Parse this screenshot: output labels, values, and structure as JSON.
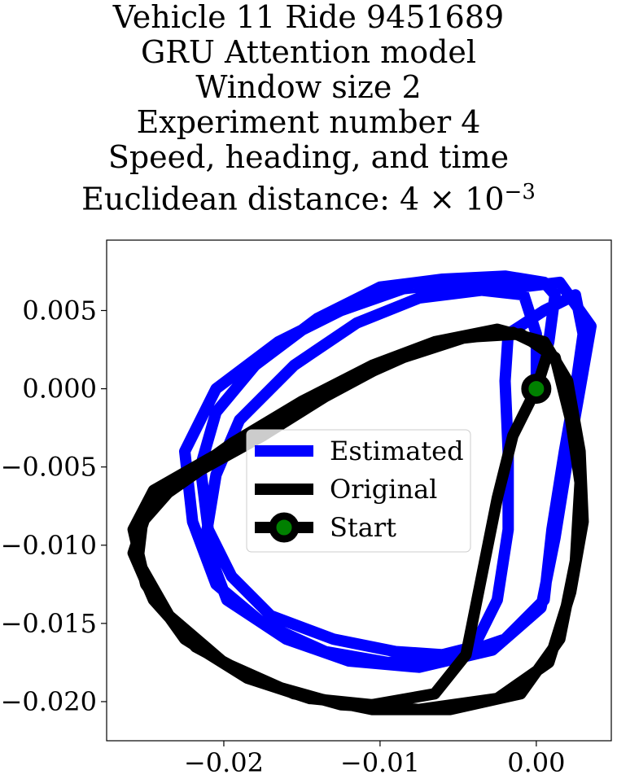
{
  "title_lines": [
    "Vehicle 11 Ride 9451689",
    "GRU Attention model",
    "Window size 2",
    "Experiment number 4",
    "Speed, heading, and time"
  ],
  "title_metric": {
    "prefix": "Euclidean distance: ",
    "mantissa": "4",
    "times": "×",
    "base": "10",
    "exponent": "−3"
  },
  "chart_data": {
    "type": "line",
    "title": "Vehicle 11 Ride 9451689 / GRU Attention model / Window size 2 / Experiment number 4 / Speed, heading, and time / Euclidean distance: 4×10^-3",
    "xlabel": "",
    "ylabel": "",
    "xlim": [
      -0.0275,
      0.0048
    ],
    "ylim": [
      -0.0225,
      0.0095
    ],
    "xticks": [
      -0.02,
      -0.01,
      0.0
    ],
    "xtick_labels": [
      "−0.02",
      "−0.01",
      "0.00"
    ],
    "yticks": [
      0.005,
      0.0,
      -0.005,
      -0.01,
      -0.015,
      -0.02
    ],
    "ytick_labels": [
      "0.005",
      "0.000",
      "−0.005",
      "−0.010",
      "−0.015",
      "−0.020"
    ],
    "grid": false,
    "legend_position": "center",
    "series": [
      {
        "name": "Estimated",
        "color": "#0000ff",
        "points": [
          [
            0.0,
            0.0
          ],
          [
            0.0008,
            0.003
          ],
          [
            0.0012,
            0.006
          ],
          [
            0.0005,
            0.0068
          ],
          [
            -0.002,
            0.0072
          ],
          [
            -0.006,
            0.007
          ],
          [
            -0.01,
            0.0065
          ],
          [
            -0.014,
            0.0045
          ],
          [
            -0.018,
            0.0015
          ],
          [
            -0.0205,
            -0.0015
          ],
          [
            -0.0215,
            -0.005
          ],
          [
            -0.021,
            -0.009
          ],
          [
            -0.0195,
            -0.012
          ],
          [
            -0.017,
            -0.0145
          ],
          [
            -0.013,
            -0.016
          ],
          [
            -0.009,
            -0.0168
          ],
          [
            -0.006,
            -0.017
          ],
          [
            -0.004,
            -0.0165
          ],
          [
            -0.0025,
            -0.0135
          ],
          [
            -0.0018,
            -0.009
          ],
          [
            -0.0018,
            -0.004
          ],
          [
            -0.002,
            0.0005
          ],
          [
            -0.0018,
            0.0035
          ],
          [
            0.0005,
            0.005
          ],
          [
            0.0025,
            0.006
          ],
          [
            0.003,
            0.0035
          ],
          [
            0.0025,
            0.0
          ],
          [
            0.0018,
            -0.004
          ],
          [
            0.001,
            -0.009
          ],
          [
            0.0005,
            -0.0135
          ],
          [
            -0.002,
            -0.016
          ],
          [
            -0.0055,
            -0.0172
          ],
          [
            -0.0095,
            -0.0175
          ],
          [
            -0.0135,
            -0.0168
          ],
          [
            -0.0175,
            -0.015
          ],
          [
            -0.0205,
            -0.0125
          ],
          [
            -0.022,
            -0.0085
          ],
          [
            -0.0225,
            -0.004
          ],
          [
            -0.0205,
            0.0
          ],
          [
            -0.0165,
            0.003
          ],
          [
            -0.0125,
            0.005
          ],
          [
            -0.0085,
            0.0064
          ],
          [
            -0.0045,
            0.0068
          ],
          [
            -0.001,
            0.0065
          ],
          [
            0.0015,
            0.0068
          ],
          [
            0.0035,
            0.004
          ],
          [
            0.0028,
            0.0
          ],
          [
            0.002,
            -0.0045
          ],
          [
            0.0012,
            -0.0095
          ],
          [
            0.0003,
            -0.014
          ],
          [
            -0.0028,
            -0.0167
          ],
          [
            -0.0075,
            -0.0178
          ],
          [
            -0.012,
            -0.0174
          ],
          [
            -0.016,
            -0.016
          ],
          [
            -0.0198,
            -0.0135
          ],
          [
            -0.0212,
            -0.0098
          ],
          [
            -0.0205,
            -0.0055
          ],
          [
            -0.019,
            -0.002
          ],
          [
            -0.0155,
            0.0015
          ],
          [
            -0.0115,
            0.0042
          ],
          [
            -0.0075,
            0.0058
          ],
          [
            -0.0035,
            0.0063
          ],
          [
            -0.0008,
            0.006
          ],
          [
            0.0,
            0.0035
          ],
          [
            0.0,
            0.0
          ]
        ]
      },
      {
        "name": "Original",
        "color": "#000000",
        "points": [
          [
            0.0,
            0.0
          ],
          [
            -0.0015,
            -0.003
          ],
          [
            -0.0025,
            -0.007
          ],
          [
            -0.0035,
            -0.012
          ],
          [
            -0.0045,
            -0.017
          ],
          [
            -0.0065,
            -0.0195
          ],
          [
            -0.0105,
            -0.0202
          ],
          [
            -0.0145,
            -0.0198
          ],
          [
            -0.0185,
            -0.0185
          ],
          [
            -0.0225,
            -0.016
          ],
          [
            -0.025,
            -0.0125
          ],
          [
            -0.0258,
            -0.009
          ],
          [
            -0.0245,
            -0.0065
          ],
          [
            -0.021,
            -0.0045
          ],
          [
            -0.0175,
            -0.0025
          ],
          [
            -0.013,
            0.0
          ],
          [
            -0.0085,
            0.002
          ],
          [
            -0.0045,
            0.0033
          ],
          [
            -0.001,
            0.0035
          ],
          [
            0.0012,
            0.002
          ],
          [
            0.0022,
            -0.002
          ],
          [
            0.0028,
            -0.006
          ],
          [
            0.0025,
            -0.011
          ],
          [
            0.0015,
            -0.016
          ],
          [
            -0.001,
            -0.0195
          ],
          [
            -0.0055,
            -0.0205
          ],
          [
            -0.0105,
            -0.0205
          ],
          [
            -0.0155,
            -0.0195
          ],
          [
            -0.02,
            -0.0175
          ],
          [
            -0.0235,
            -0.0145
          ],
          [
            -0.0255,
            -0.011
          ],
          [
            -0.0252,
            -0.0085
          ],
          [
            -0.023,
            -0.006
          ],
          [
            -0.0195,
            -0.0035
          ],
          [
            -0.015,
            -0.0008
          ],
          [
            -0.0105,
            0.0015
          ],
          [
            -0.0065,
            0.003
          ],
          [
            -0.0025,
            0.0038
          ],
          [
            0.0005,
            0.003
          ],
          [
            0.002,
            0.0005
          ],
          [
            0.0028,
            -0.004
          ],
          [
            0.003,
            -0.0085
          ],
          [
            0.0022,
            -0.013
          ],
          [
            0.0008,
            -0.0175
          ],
          [
            -0.0025,
            -0.0198
          ],
          [
            -0.0075,
            -0.0205
          ],
          [
            -0.0125,
            -0.0202
          ],
          [
            -0.0175,
            -0.0188
          ],
          [
            -0.0218,
            -0.0165
          ],
          [
            -0.0245,
            -0.0135
          ],
          [
            -0.0258,
            -0.0105
          ],
          [
            -0.0248,
            -0.0075
          ],
          [
            -0.0215,
            -0.0052
          ],
          [
            -0.0175,
            -0.003
          ],
          [
            -0.0135,
            -0.0005
          ],
          [
            -0.0092,
            0.0018
          ],
          [
            -0.005,
            0.0032
          ],
          [
            -0.0015,
            0.0036
          ],
          [
            0.0008,
            0.0025
          ],
          [
            0.0,
            0.0
          ]
        ]
      }
    ],
    "start_marker": {
      "name": "Start",
      "x": 0.0,
      "y": 0.0,
      "color": "#000000",
      "face_color": "#008000"
    }
  }
}
